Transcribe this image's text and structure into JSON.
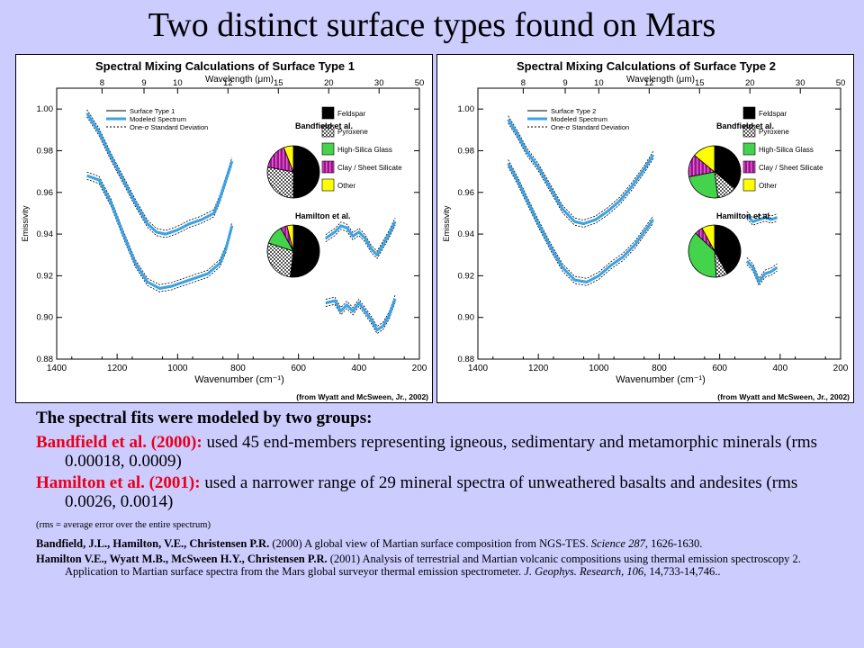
{
  "slide": {
    "title": "Two distinct surface types found on Mars"
  },
  "colors": {
    "background": "#ccccff",
    "model": "#3aa4e6",
    "feldspar": "#000000",
    "pyroxene": "#9a9a9a",
    "glass": "#44d44c",
    "clay": "#8a1c8a",
    "other": "#ffff00",
    "red_text": "#e8001c"
  },
  "text": {
    "intro": "The spectral fits were modeled by two groups:",
    "p1_head": "Bandfield et al. (2000):",
    "p1_body": "  used 45 end-members representing igneous, sedimentary and metamorphic minerals (rms 0.00018, 0.0009)",
    "p2_head": "Hamilton et al. (2001):",
    "p2_body": "  used a narrower range of 29 mineral spectra of unweathered basalts and andesites  (rms 0.0026, 0.0014)",
    "note": "(rms = average error over the entire spectrum)",
    "ref1_authors": "Bandfield, J.L., Hamilton, V.E., Christensen P.R.",
    "ref1_text": " (2000) A global view of Martian surface composition from NGS-TES. ",
    "ref1_journal": "Science 287",
    "ref1_pages": ", 1626-1630.",
    "ref2_authors": "Hamilton V.E., Wyatt M.B., McSween H.Y., Christensen P.R.",
    "ref2_text": " (2001) Analysis of terrestrial and Martian volcanic compositions using thermal emission spectroscopy 2. Application to Martian surface spectra from the Mars global surveyor thermal emission spectrometer.  ",
    "ref2_journal": "J. Geophys. Research, 106,",
    "ref2_pages": " 14,733-14,746.."
  },
  "chart_data": [
    {
      "type": "line",
      "title": "Spectral Mixing Calculations of Surface Type 1",
      "xlabel": "Wavenumber (cm⁻¹)",
      "x2label": "Wavelength (μm)",
      "ylabel": "Emissivity",
      "credit": "(from Wyatt and McSween, Jr., 2002)",
      "xlim": [
        1400,
        200
      ],
      "ylim": [
        0.88,
        1.01
      ],
      "xticks": [
        1400,
        1200,
        1000,
        800,
        600,
        400,
        200
      ],
      "yticks": [
        "0.88",
        "0.90",
        "0.92",
        "0.94",
        "0.96",
        "0.98",
        "1.00"
      ],
      "x2ticks": [
        "8",
        "9",
        "10",
        "12",
        "15",
        "20",
        "30",
        "50"
      ],
      "legend": [
        "Surface Type 1",
        "Modeled Spectrum",
        "One-σ Standard Deviation"
      ],
      "mineral_legend": [
        "Feldspar",
        "Pyroxene",
        "High-Silica Glass",
        "Clay / Sheet Silicate",
        "Other"
      ],
      "bandfield_label": "Bandfield et al.",
      "hamilton_label": "Hamilton et al.",
      "bandfield_pie": [
        0.5,
        0.28,
        0.0,
        0.16,
        0.06
      ],
      "hamilton_pie": [
        0.52,
        0.28,
        0.12,
        0.04,
        0.04
      ],
      "series": [
        {
          "name": "Bandfield et al.",
          "segments": [
            [
              [
                1300,
                0.998
              ],
              [
                1260,
                0.989
              ],
              [
                1220,
                0.977
              ],
              [
                1180,
                0.966
              ],
              [
                1140,
                0.955
              ],
              [
                1100,
                0.945
              ],
              [
                1070,
                0.941
              ],
              [
                1040,
                0.94
              ],
              [
                1000,
                0.942
              ],
              [
                960,
                0.945
              ],
              [
                920,
                0.947
              ],
              [
                880,
                0.95
              ],
              [
                860,
                0.957
              ],
              [
                840,
                0.966
              ],
              [
                820,
                0.975
              ]
            ],
            [
              [
                510,
                0.938
              ],
              [
                480,
                0.941
              ],
              [
                460,
                0.944
              ],
              [
                440,
                0.943
              ],
              [
                420,
                0.939
              ],
              [
                400,
                0.941
              ],
              [
                380,
                0.938
              ],
              [
                360,
                0.933
              ],
              [
                340,
                0.93
              ],
              [
                320,
                0.935
              ],
              [
                300,
                0.94
              ],
              [
                280,
                0.946
              ]
            ]
          ]
        },
        {
          "name": "Hamilton et al.",
          "segments": [
            [
              [
                1300,
                0.968
              ],
              [
                1260,
                0.966
              ],
              [
                1220,
                0.955
              ],
              [
                1180,
                0.94
              ],
              [
                1140,
                0.926
              ],
              [
                1100,
                0.917
              ],
              [
                1060,
                0.914
              ],
              [
                1020,
                0.915
              ],
              [
                980,
                0.917
              ],
              [
                940,
                0.919
              ],
              [
                900,
                0.921
              ],
              [
                860,
                0.926
              ],
              [
                840,
                0.933
              ],
              [
                820,
                0.944
              ]
            ],
            [
              [
                510,
                0.907
              ],
              [
                480,
                0.908
              ],
              [
                460,
                0.903
              ],
              [
                440,
                0.906
              ],
              [
                420,
                0.903
              ],
              [
                400,
                0.907
              ],
              [
                380,
                0.903
              ],
              [
                360,
                0.899
              ],
              [
                340,
                0.894
              ],
              [
                320,
                0.896
              ],
              [
                300,
                0.901
              ],
              [
                280,
                0.909
              ]
            ]
          ]
        }
      ]
    },
    {
      "type": "line",
      "title": "Spectral Mixing Calculations of Surface Type 2",
      "xlabel": "Wavenumber (cm⁻¹)",
      "x2label": "Wavelength (μm)",
      "ylabel": "Emissivity",
      "credit": "(from Wyatt and McSween, Jr., 2002)",
      "xlim": [
        1400,
        200
      ],
      "ylim": [
        0.88,
        1.01
      ],
      "xticks": [
        1400,
        1200,
        1000,
        800,
        600,
        400,
        200
      ],
      "yticks": [
        "0.88",
        "0.90",
        "0.92",
        "0.94",
        "0.96",
        "0.98",
        "1.00"
      ],
      "x2ticks": [
        "8",
        "9",
        "10",
        "12",
        "15",
        "20",
        "30",
        "50"
      ],
      "legend": [
        "Surface Type 2",
        "Modeled Spectrum",
        "One-σ Standard Deviation"
      ],
      "mineral_legend": [
        "Feldspar",
        "Pyroxene",
        "High-Silica Glass",
        "Clay / Sheet Silicate",
        "Other"
      ],
      "bandfield_label": "Bandfield et al.",
      "hamilton_label": "Hamilton et al.",
      "bandfield_pie": [
        0.36,
        0.12,
        0.24,
        0.14,
        0.14
      ],
      "hamilton_pie": [
        0.42,
        0.07,
        0.38,
        0.05,
        0.08
      ],
      "series": [
        {
          "name": "Bandfield et al.",
          "segments": [
            [
              [
                1300,
                0.995
              ],
              [
                1270,
                0.988
              ],
              [
                1240,
                0.98
              ],
              [
                1200,
                0.972
              ],
              [
                1160,
                0.962
              ],
              [
                1120,
                0.952
              ],
              [
                1080,
                0.946
              ],
              [
                1050,
                0.945
              ],
              [
                1010,
                0.947
              ],
              [
                970,
                0.951
              ],
              [
                930,
                0.956
              ],
              [
                890,
                0.963
              ],
              [
                850,
                0.971
              ],
              [
                820,
                0.978
              ]
            ],
            [
              [
                510,
                0.949
              ],
              [
                490,
                0.946
              ],
              [
                470,
                0.947
              ],
              [
                450,
                0.948
              ],
              [
                430,
                0.947
              ],
              [
                410,
                0.948
              ]
            ]
          ]
        },
        {
          "name": "Hamilton et al.",
          "segments": [
            [
              [
                1300,
                0.974
              ],
              [
                1270,
                0.966
              ],
              [
                1240,
                0.957
              ],
              [
                1200,
                0.945
              ],
              [
                1160,
                0.934
              ],
              [
                1120,
                0.924
              ],
              [
                1080,
                0.918
              ],
              [
                1040,
                0.917
              ],
              [
                1000,
                0.92
              ],
              [
                960,
                0.925
              ],
              [
                920,
                0.929
              ],
              [
                880,
                0.935
              ],
              [
                850,
                0.941
              ],
              [
                820,
                0.947
              ]
            ],
            [
              [
                510,
                0.927
              ],
              [
                490,
                0.924
              ],
              [
                470,
                0.917
              ],
              [
                450,
                0.921
              ],
              [
                430,
                0.922
              ],
              [
                410,
                0.924
              ]
            ]
          ]
        }
      ]
    }
  ]
}
